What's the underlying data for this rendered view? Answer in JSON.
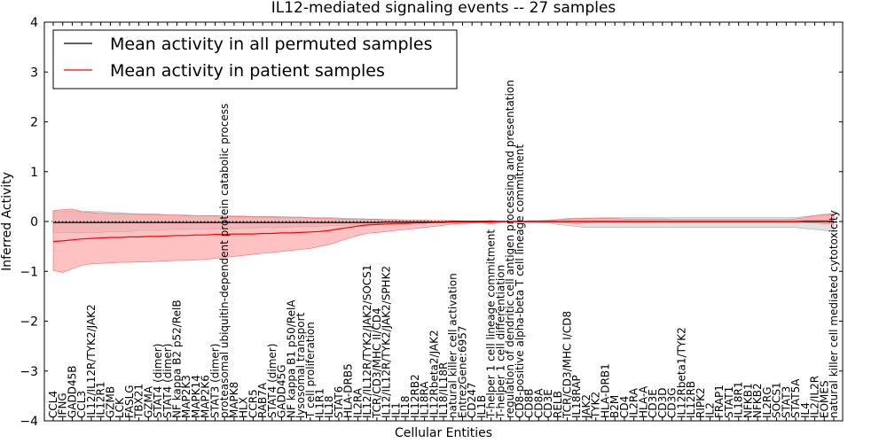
{
  "chart_data": {
    "type": "line",
    "title": "IL12-mediated signaling events -- 27 samples",
    "xlabel": "Cellular Entities",
    "ylabel": "Inferred Activity",
    "ylim": [
      -4,
      4
    ],
    "yticks": [
      -4,
      -3,
      -2,
      -1,
      0,
      1,
      2,
      3,
      4
    ],
    "grid": false,
    "legend_position": "top-left",
    "colors": {
      "permuted": "#000000",
      "patient": "#ff0000",
      "permuted_band": "#c8c8c8",
      "patient_band": "#ff9999"
    },
    "categories": [
      "CCL4",
      "IFNG",
      "GADD45B",
      "CCL3",
      "IL12/IL12R/TYK2/JAK2",
      "IL12R1",
      "GZMB",
      "LCK",
      "FASLG",
      "TBX21",
      "GZMA",
      "STAT4 (dimer)",
      "STAT4 (dimer)",
      "NF kappa B2 p52/RelB",
      "MAP2K3",
      "MAPK14",
      "MAP2K6",
      "STAT3 (dimer)",
      "proteasomal ubiquitin-dependent protein catabolic process",
      "MAPK8",
      "HLX",
      "CCR5",
      "RAB7A",
      "STAT4 (dimer)",
      "GADD45G",
      "NF kappa B1 p50/RelA",
      "lysosomal transport",
      "T cell proliferation",
      "IL1R1",
      "IL18",
      "STAT6",
      "HLA-DRB5",
      "IL2RA",
      "IL12/IL12R/TYK2/JAK2/SOCS1",
      "TCR/CD3/MHC II/CD4",
      "IL12/IL12R/TYK2/JAK2/SPHK2",
      "IL1",
      "IL18",
      "IL12RB2",
      "IL18RA",
      "IL12Rbeta2/JAK2",
      "IL18/IL18R",
      "natural killer cell activation",
      "EntrezGene:6957",
      "CD247",
      "IL1B",
      "T-helper 1 cell lineage commitment",
      "T-helper 1 cell differentiation",
      "regulation of dendritic cell antigen processing and presentation",
      "CD8-positive alpha-beta T cell lineage commitment",
      "CD8B",
      "CD8A",
      "CD3E",
      "RELB",
      "TCR/CD3/MHC I/CD8",
      "IL18RAP",
      "JAK2",
      "TYK2",
      "HLA-DRB1",
      "B2M",
      "CD4",
      "IL2RA",
      "HLA-A",
      "CD3E",
      "CD3D",
      "CD3G",
      "IL12Rbeta1/TYK2",
      "IL12RB",
      "RIPK2",
      "IL2",
      "FRAP1",
      "STAT1",
      "IL18R1",
      "NFKB1",
      "NFKB2",
      "IL2RG",
      "SOCS1",
      "STAT3",
      "STAT5A",
      "IL4",
      "IL2/IL2R",
      "EOMES",
      "natural killer cell mediated cytotoxicity"
    ],
    "series": [
      {
        "name": "Mean activity in all permuted samples",
        "values": [
          -0.02,
          -0.02,
          -0.02,
          -0.02,
          -0.02,
          -0.02,
          -0.02,
          -0.02,
          -0.02,
          -0.02,
          -0.02,
          -0.02,
          -0.02,
          -0.02,
          -0.02,
          -0.02,
          -0.02,
          -0.02,
          -0.02,
          -0.02,
          -0.02,
          -0.02,
          -0.02,
          -0.02,
          -0.02,
          -0.02,
          -0.02,
          -0.02,
          -0.02,
          -0.02,
          -0.02,
          -0.02,
          -0.02,
          -0.02,
          -0.02,
          -0.01,
          -0.01,
          -0.01,
          -0.01,
          -0.01,
          -0.01,
          -0.01,
          0,
          0,
          0,
          0,
          0,
          0,
          0,
          0,
          0,
          0,
          0,
          0,
          0,
          0,
          0,
          0,
          0,
          0,
          0,
          0,
          0,
          0,
          0,
          0,
          0,
          0,
          0,
          0,
          0,
          0,
          0,
          0,
          0,
          0,
          0,
          0,
          0,
          0,
          0,
          0,
          0
        ],
        "band": [
          [
            -0.22,
            0.2
          ],
          [
            -0.22,
            0.2
          ],
          [
            -0.22,
            0.2
          ],
          [
            -0.22,
            0.2
          ],
          [
            -0.22,
            0.2
          ],
          [
            -0.22,
            0.2
          ],
          [
            -0.2,
            0.18
          ],
          [
            -0.2,
            0.18
          ],
          [
            -0.2,
            0.16
          ],
          [
            -0.18,
            0.16
          ],
          [
            -0.18,
            0.15
          ],
          [
            -0.18,
            0.15
          ],
          [
            -0.16,
            0.13
          ],
          [
            -0.16,
            0.13
          ],
          [
            -0.16,
            0.13
          ],
          [
            -0.15,
            0.12
          ],
          [
            -0.15,
            0.12
          ],
          [
            -0.15,
            0.12
          ],
          [
            -0.14,
            0.11
          ],
          [
            -0.14,
            0.11
          ],
          [
            -0.13,
            0.11
          ],
          [
            -0.13,
            0.1
          ],
          [
            -0.12,
            0.1
          ],
          [
            -0.12,
            0.1
          ],
          [
            -0.12,
            0.1
          ],
          [
            -0.11,
            0.09
          ],
          [
            -0.1,
            0.09
          ],
          [
            -0.1,
            0.08
          ],
          [
            -0.1,
            0.08
          ],
          [
            -0.08,
            0.08
          ],
          [
            -0.08,
            0.07
          ],
          [
            -0.07,
            0.06
          ],
          [
            -0.06,
            0.06
          ],
          [
            -0.06,
            0.05
          ],
          [
            -0.05,
            0.05
          ],
          [
            -0.04,
            0.04
          ],
          [
            -0.04,
            0.04
          ],
          [
            -0.03,
            0.03
          ],
          [
            -0.03,
            0.03
          ],
          [
            -0.03,
            0.03
          ],
          [
            -0.02,
            0.02
          ],
          [
            -0.02,
            0.02
          ],
          [
            -0.01,
            0.01
          ],
          [
            -0.01,
            0.01
          ],
          [
            -0.01,
            0.01
          ],
          [
            -0.01,
            0.01
          ],
          [
            -0.01,
            0.01
          ],
          [
            -0.01,
            0.01
          ],
          [
            -0.01,
            0.01
          ],
          [
            -0.01,
            0.01
          ],
          [
            -0.02,
            0.02
          ],
          [
            -0.02,
            0.02
          ],
          [
            -0.03,
            0.03
          ],
          [
            -0.06,
            0.04
          ],
          [
            -0.08,
            0.06
          ],
          [
            -0.1,
            0.06
          ],
          [
            -0.12,
            0.07
          ],
          [
            -0.12,
            0.07
          ],
          [
            -0.12,
            0.08
          ],
          [
            -0.12,
            0.08
          ],
          [
            -0.12,
            0.08
          ],
          [
            -0.12,
            0.08
          ],
          [
            -0.12,
            0.08
          ],
          [
            -0.12,
            0.08
          ],
          [
            -0.12,
            0.08
          ],
          [
            -0.12,
            0.08
          ],
          [
            -0.12,
            0.08
          ],
          [
            -0.12,
            0.08
          ],
          [
            -0.12,
            0.08
          ],
          [
            -0.12,
            0.08
          ],
          [
            -0.12,
            0.08
          ],
          [
            -0.12,
            0.08
          ],
          [
            -0.12,
            0.08
          ],
          [
            -0.12,
            0.08
          ],
          [
            -0.12,
            0.08
          ],
          [
            -0.12,
            0.08
          ],
          [
            -0.12,
            0.08
          ],
          [
            -0.12,
            0.08
          ],
          [
            -0.12,
            0.08
          ],
          [
            -0.14,
            0.1
          ],
          [
            -0.16,
            0.12
          ],
          [
            -0.18,
            0.14
          ],
          [
            -0.2,
            0.16
          ]
        ]
      },
      {
        "name": "Mean activity in patient samples",
        "values": [
          -0.4,
          -0.39,
          -0.37,
          -0.35,
          -0.34,
          -0.33,
          -0.32,
          -0.32,
          -0.31,
          -0.31,
          -0.3,
          -0.3,
          -0.29,
          -0.28,
          -0.28,
          -0.27,
          -0.27,
          -0.26,
          -0.26,
          -0.25,
          -0.25,
          -0.25,
          -0.24,
          -0.24,
          -0.23,
          -0.23,
          -0.22,
          -0.21,
          -0.2,
          -0.18,
          -0.15,
          -0.12,
          -0.09,
          -0.07,
          -0.06,
          -0.05,
          -0.04,
          -0.04,
          -0.03,
          -0.03,
          -0.02,
          -0.02,
          -0.01,
          -0.01,
          -0.01,
          -0.01,
          -0.01,
          0,
          0,
          0,
          0,
          0,
          0,
          0,
          0,
          0,
          0,
          0,
          0,
          0,
          0,
          0,
          0,
          0,
          0,
          0,
          0,
          0,
          0,
          0,
          0,
          0,
          0,
          0,
          0,
          0,
          0,
          0,
          0,
          0.01,
          0.01,
          0.01,
          0.01
        ],
        "band": [
          [
            -0.98,
            0.22
          ],
          [
            -1.02,
            0.24
          ],
          [
            -0.95,
            0.25
          ],
          [
            -0.88,
            0.2
          ],
          [
            -0.85,
            0.18
          ],
          [
            -0.84,
            0.16
          ],
          [
            -0.83,
            0.16
          ],
          [
            -0.82,
            0.15
          ],
          [
            -0.82,
            0.15
          ],
          [
            -0.81,
            0.14
          ],
          [
            -0.81,
            0.14
          ],
          [
            -0.8,
            0.14
          ],
          [
            -0.79,
            0.13
          ],
          [
            -0.78,
            0.13
          ],
          [
            -0.78,
            0.12
          ],
          [
            -0.77,
            0.12
          ],
          [
            -0.76,
            0.12
          ],
          [
            -0.74,
            0.11
          ],
          [
            -0.72,
            0.11
          ],
          [
            -0.7,
            0.1
          ],
          [
            -0.68,
            0.1
          ],
          [
            -0.66,
            0.09
          ],
          [
            -0.64,
            0.09
          ],
          [
            -0.62,
            0.09
          ],
          [
            -0.6,
            0.08
          ],
          [
            -0.58,
            0.08
          ],
          [
            -0.56,
            0.08
          ],
          [
            -0.54,
            0.07
          ],
          [
            -0.5,
            0.06
          ],
          [
            -0.46,
            0.06
          ],
          [
            -0.4,
            0.05
          ],
          [
            -0.34,
            0.05
          ],
          [
            -0.28,
            0.04
          ],
          [
            -0.24,
            0.04
          ],
          [
            -0.22,
            0.04
          ],
          [
            -0.2,
            0.03
          ],
          [
            -0.18,
            0.03
          ],
          [
            -0.16,
            0.03
          ],
          [
            -0.14,
            0.03
          ],
          [
            -0.12,
            0.03
          ],
          [
            -0.1,
            0.02
          ],
          [
            -0.08,
            0.02
          ],
          [
            -0.05,
            0.02
          ],
          [
            -0.04,
            0.01
          ],
          [
            -0.03,
            0.01
          ],
          [
            -0.02,
            0.01
          ],
          [
            -0.05,
            0.02
          ],
          [
            -0.02,
            0.01
          ],
          [
            -0.01,
            0.01
          ],
          [
            -0.01,
            0.01
          ],
          [
            -0.01,
            0.01
          ],
          [
            -0.01,
            0.01
          ],
          [
            -0.01,
            0.01
          ],
          [
            -0.02,
            0.04
          ],
          [
            -0.03,
            0.05
          ],
          [
            -0.04,
            0.06
          ],
          [
            -0.03,
            0.06
          ],
          [
            -0.02,
            0.07
          ],
          [
            -0.02,
            0.06
          ],
          [
            -0.02,
            0.06
          ],
          [
            -0.02,
            0.05
          ],
          [
            -0.02,
            0.05
          ],
          [
            -0.02,
            0.05
          ],
          [
            -0.02,
            0.05
          ],
          [
            -0.02,
            0.05
          ],
          [
            -0.02,
            0.04
          ],
          [
            -0.02,
            0.04
          ],
          [
            -0.02,
            0.04
          ],
          [
            -0.02,
            0.04
          ],
          [
            -0.02,
            0.04
          ],
          [
            -0.02,
            0.04
          ],
          [
            -0.02,
            0.04
          ],
          [
            -0.02,
            0.04
          ],
          [
            -0.02,
            0.04
          ],
          [
            -0.02,
            0.04
          ],
          [
            -0.02,
            0.04
          ],
          [
            -0.02,
            0.04
          ],
          [
            -0.02,
            0.04
          ],
          [
            -0.02,
            0.05
          ],
          [
            -0.02,
            0.08
          ],
          [
            -0.03,
            0.12
          ],
          [
            -0.04,
            0.14
          ],
          [
            -0.04,
            0.14
          ]
        ]
      }
    ]
  }
}
